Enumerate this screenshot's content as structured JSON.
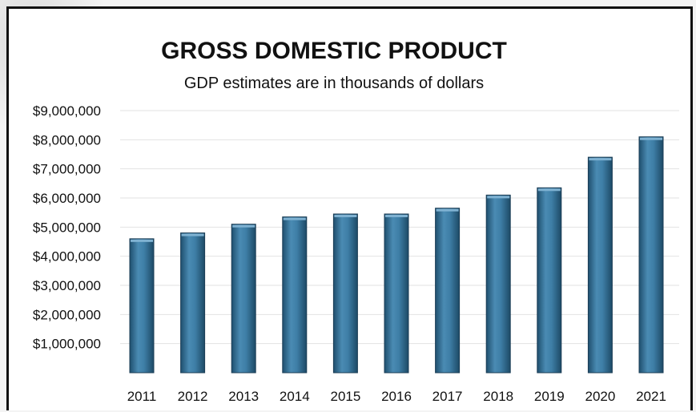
{
  "chart_data": {
    "type": "bar",
    "title": "GROSS DOMESTIC PRODUCT",
    "subtitle": "GDP estimates are in thousands of dollars",
    "xlabel": "",
    "ylabel": "",
    "categories": [
      "2011",
      "2012",
      "2013",
      "2014",
      "2015",
      "2016",
      "2017",
      "2018",
      "2019",
      "2020",
      "2021"
    ],
    "values": [
      4600000,
      4800000,
      5100000,
      5350000,
      5450000,
      5450000,
      5650000,
      6100000,
      6350000,
      7400000,
      8100000
    ],
    "ylim": [
      0,
      9000000
    ],
    "yticks": [
      1000000,
      2000000,
      3000000,
      4000000,
      5000000,
      6000000,
      7000000,
      8000000,
      9000000
    ],
    "ytick_labels": [
      "$1,000,000",
      "$2,000,000",
      "$3,000,000",
      "$4,000,000",
      "$5,000,000",
      "$6,000,000",
      "$7,000,000",
      "$8,000,000",
      "$9,000,000"
    ],
    "grid": true,
    "legend": "none",
    "bar_color": "#3e7ea6"
  }
}
